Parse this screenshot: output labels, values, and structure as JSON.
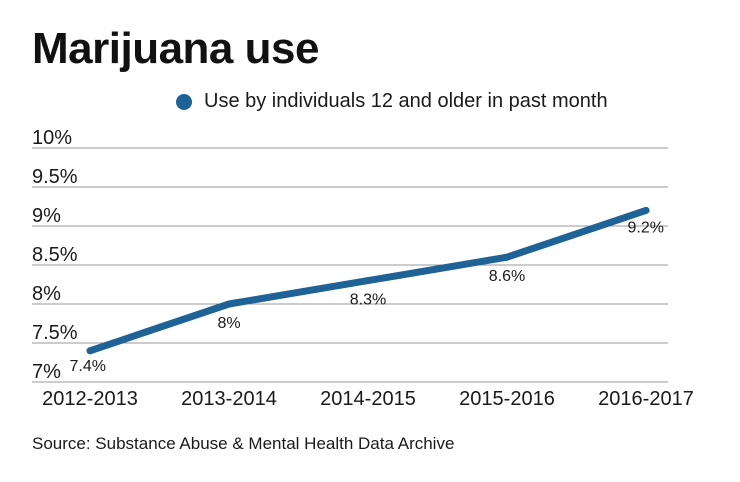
{
  "chart_data": {
    "type": "line",
    "title": "Marijuana use",
    "categories": [
      "2012-2013",
      "2013-2014",
      "2014-2015",
      "2015-2016",
      "2016-2017"
    ],
    "series": [
      {
        "name": "Use by individuals 12 and older in past month",
        "values": [
          7.4,
          8.0,
          8.3,
          8.6,
          9.2
        ]
      }
    ],
    "data_labels": [
      "7.4%",
      "8%",
      "8.3%",
      "8.6%",
      "9.2%"
    ],
    "y_ticks": [
      "10%",
      "9.5%",
      "9%",
      "8.5%",
      "8%",
      "7.5%",
      "7%"
    ],
    "y_tick_values": [
      10,
      9.5,
      9,
      8.5,
      8,
      7.5,
      7
    ],
    "ylim": [
      7,
      10
    ],
    "grid": true,
    "legend_position": "top",
    "colors": {
      "line": "#1f6396",
      "grid": "#9a9a9a"
    },
    "source": "Source: Substance Abuse & Mental Health Data Archive"
  }
}
